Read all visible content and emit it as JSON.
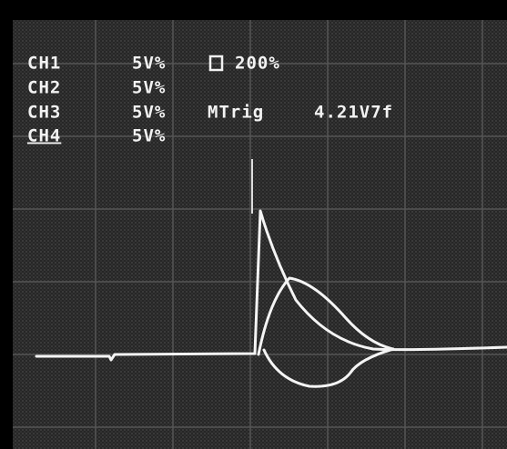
{
  "channels": [
    {
      "name": "CH1",
      "scale": "5V%"
    },
    {
      "name": "CH2",
      "scale": "5V%"
    },
    {
      "name": "CH3",
      "scale": "5V%"
    },
    {
      "name": "CH4",
      "scale": "5V%"
    }
  ],
  "timebase": "200%",
  "trigger": {
    "label": "MTrig",
    "level": "4.21V7f"
  }
}
